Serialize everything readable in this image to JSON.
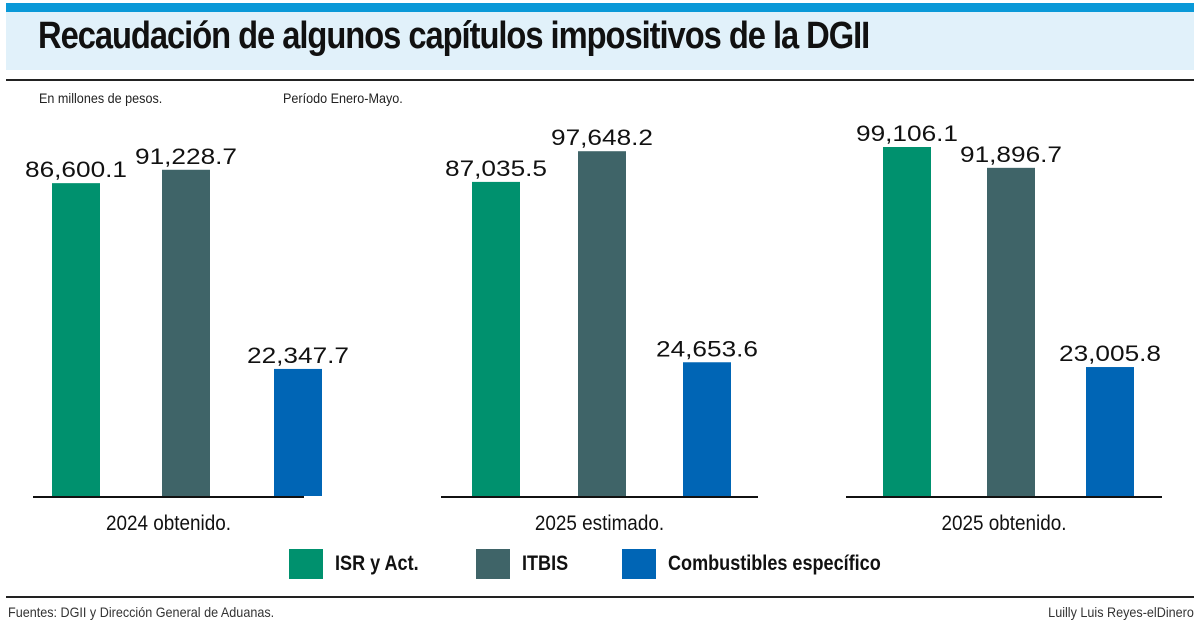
{
  "header": {
    "title": "Recaudación de algunos capítulos impositivos de la DGII",
    "unit_note": "En millones de pesos.",
    "period_note": "Período Enero-Mayo."
  },
  "colors": {
    "top_bar": "#0a99d8",
    "title_bg": "#e1f1fa",
    "isr": "#00916e",
    "itbis": "#3f6468",
    "combustibles": "#0065b5"
  },
  "chart_data": {
    "type": "bar",
    "title": "Recaudación de algunos capítulos impositivos de la DGII",
    "subtitle": "En millones de pesos. Período Enero-Mayo.",
    "xlabel": "",
    "ylabel": "",
    "grid": false,
    "legend_position": "bottom",
    "ylim": [
      -21600,
      99106.1
    ],
    "categories": [
      "2024 obtenido.",
      "2025 estimado.",
      "2025 obtenido."
    ],
    "series": [
      {
        "name": "ISR y Act.",
        "color": "#00916e",
        "values": [
          86600.1,
          87035.5,
          99106.1
        ],
        "labels": [
          "86,600.1",
          "87,035.5",
          "99,106.1"
        ]
      },
      {
        "name": "ITBIS",
        "color": "#3f6468",
        "values": [
          91228.7,
          97648.2,
          91896.7
        ],
        "labels": [
          "91,228.7",
          "97,648.2",
          "91,896.7"
        ]
      },
      {
        "name": "Combustibles específico",
        "color": "#0065b5",
        "values": [
          22347.7,
          24653.6,
          23005.8
        ],
        "labels": [
          "22,347.7",
          "24,653.6",
          "23,005.8"
        ]
      }
    ]
  },
  "footer": {
    "source": "Fuentes: DGII y Dirección General de Aduanas.",
    "credit": "Luilly Luis Reyes-elDinero"
  }
}
